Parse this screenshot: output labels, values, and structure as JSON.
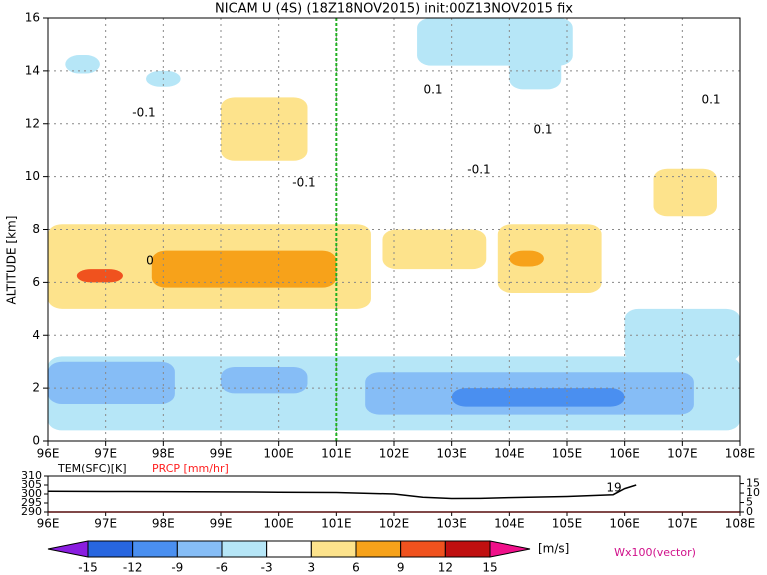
{
  "chart_data": {
    "type": "cross-section",
    "title": "NICAM U (4S) (18Z18NOV2015) init:00Z13NOV2015 fix",
    "ylabel": "ALTITUDE [km]",
    "xlim": [
      96,
      108
    ],
    "ylim": [
      0,
      16
    ],
    "xticks": [
      {
        "value": 96,
        "label": "96E"
      },
      {
        "value": 97,
        "label": "97E"
      },
      {
        "value": 98,
        "label": "98E"
      },
      {
        "value": 99,
        "label": "99E"
      },
      {
        "value": 100,
        "label": "100E"
      },
      {
        "value": 101,
        "label": "101E"
      },
      {
        "value": 102,
        "label": "102E"
      },
      {
        "value": 103,
        "label": "103E"
      },
      {
        "value": 104,
        "label": "104E"
      },
      {
        "value": 105,
        "label": "105E"
      },
      {
        "value": 106,
        "label": "106E"
      },
      {
        "value": 107,
        "label": "107E"
      },
      {
        "value": 108,
        "label": "108E"
      }
    ],
    "yticks": [
      0,
      2,
      4,
      6,
      8,
      10,
      12,
      14,
      16
    ],
    "grid": true,
    "marker_x": 101,
    "marker_color": "#20b020",
    "shading": [
      {
        "x": [
          96,
          108
        ],
        "y": [
          0.4,
          3.2
        ],
        "value": -4.5
      },
      {
        "x": [
          106,
          108
        ],
        "y": [
          3,
          5
        ],
        "value": -4.5
      },
      {
        "x": [
          96,
          98.2
        ],
        "y": [
          1.4,
          3
        ],
        "value": -7.5
      },
      {
        "x": [
          99,
          100.5
        ],
        "y": [
          1.8,
          2.8
        ],
        "value": -7.5
      },
      {
        "x": [
          101.5,
          107.2
        ],
        "y": [
          1,
          2.6
        ],
        "value": -7.5
      },
      {
        "x": [
          103,
          106
        ],
        "y": [
          1.3,
          2
        ],
        "value": -10.5
      },
      {
        "x": [
          96,
          101.6
        ],
        "y": [
          5,
          8.2
        ],
        "value": 4.5
      },
      {
        "x": [
          97.8,
          101
        ],
        "y": [
          5.8,
          7.2
        ],
        "value": 7.5
      },
      {
        "x": [
          96.5,
          97.3
        ],
        "y": [
          6,
          6.5
        ],
        "value": 10.5
      },
      {
        "x": [
          101.8,
          103.6
        ],
        "y": [
          6.5,
          8
        ],
        "value": 4.5
      },
      {
        "x": [
          103.8,
          105.6
        ],
        "y": [
          5.6,
          8.2
        ],
        "value": 4.5
      },
      {
        "x": [
          104,
          104.6
        ],
        "y": [
          6.6,
          7.2
        ],
        "value": 7.5
      },
      {
        "x": [
          99,
          100.5
        ],
        "y": [
          10.6,
          13
        ],
        "value": 4.5
      },
      {
        "x": [
          106.5,
          107.6
        ],
        "y": [
          8.5,
          10.3
        ],
        "value": 4.5
      },
      {
        "x": [
          102.4,
          105.1
        ],
        "y": [
          14.2,
          16
        ],
        "value": -4.5
      },
      {
        "x": [
          104,
          104.9
        ],
        "y": [
          13.3,
          15
        ],
        "value": -4.5
      },
      {
        "x": [
          96.3,
          96.9
        ],
        "y": [
          13.9,
          14.6
        ],
        "value": -4.5
      },
      {
        "x": [
          97.7,
          98.3
        ],
        "y": [
          13.4,
          14
        ],
        "value": -4.5
      }
    ],
    "annotations": [
      "-0.1",
      "0.1",
      "0.1",
      "0.1",
      "-0.1",
      "-0.1",
      "0",
      "19"
    ],
    "colorbar": {
      "levels": [
        -15,
        -12,
        -9,
        -6,
        -3,
        3,
        6,
        9,
        12,
        15
      ],
      "colors": [
        "#8a1de0",
        "#2866e0",
        "#4a8ff0",
        "#86bdf6",
        "#b6e6f7",
        "#ffffff",
        "#fde38c",
        "#f7a21a",
        "#f0521e",
        "#c01010",
        "#f0108a"
      ],
      "unit": "[m/s]",
      "vector_label": "Wx100(vector)"
    },
    "sub_panel": {
      "series": [
        {
          "name": "TEM(SFC)[K]",
          "color": "#000000",
          "x": [
            96,
            97,
            98,
            99,
            100,
            101,
            102,
            102.5,
            103,
            103.5,
            104,
            105,
            105.8,
            106,
            106.2
          ],
          "values": [
            301.5,
            301.4,
            301.3,
            301.2,
            301,
            300.8,
            300,
            298.2,
            297.5,
            297.6,
            298,
            298.6,
            299.6,
            303,
            305
          ]
        },
        {
          "name": "PRCP [mm/hr]",
          "color": "#ff2020",
          "axis": "y2",
          "x": [
            96,
            108
          ],
          "values": [
            0,
            0
          ]
        }
      ],
      "ylim": [
        290,
        310
      ],
      "yticks": [
        290,
        295,
        300,
        305,
        310
      ],
      "y2lim": [
        0,
        19
      ],
      "y2ticks": [
        0,
        5,
        10,
        15
      ]
    }
  }
}
